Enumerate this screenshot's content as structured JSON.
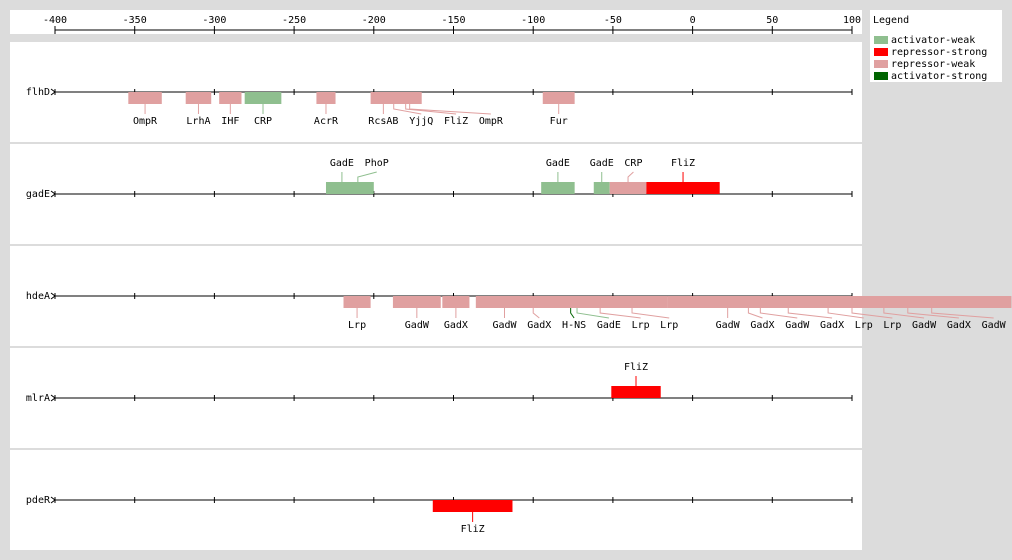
{
  "chart_data": {
    "type": "tracks",
    "xlim": [
      -400,
      100
    ],
    "xticks": [
      -400,
      -350,
      -300,
      -250,
      -200,
      -150,
      -100,
      -50,
      0,
      50,
      100
    ],
    "legend": {
      "title": "Legend"
    },
    "series": [
      {
        "name": "activator-weak",
        "color": "#8fbf8f"
      },
      {
        "name": "repressor-strong",
        "color": "#ff0000"
      },
      {
        "name": "repressor-weak",
        "color": "#e0a0a0"
      },
      {
        "name": "activator-strong",
        "color": "#006400"
      }
    ],
    "tracks": [
      {
        "name": "flhD",
        "sites": [
          {
            "label": "OmpR",
            "start": -354,
            "end": -333,
            "kind": "repressor-weak"
          },
          {
            "label": "LrhA",
            "start": -318,
            "end": -302,
            "kind": "repressor-weak"
          },
          {
            "label": "IHF",
            "start": -297,
            "end": -283,
            "kind": "repressor-weak"
          },
          {
            "label": "CRP",
            "start": -281,
            "end": -258,
            "kind": "activator-weak"
          },
          {
            "label": "AcrR",
            "start": -236,
            "end": -224,
            "kind": "repressor-weak"
          },
          {
            "label": "RcsAB",
            "start": -202,
            "end": -186,
            "kind": "repressor-weak"
          },
          {
            "label": "YjjQ",
            "start": -195,
            "end": -180,
            "kind": "repressor-weak"
          },
          {
            "label": "FliZ",
            "start": -190,
            "end": -170,
            "kind": "repressor-weak"
          },
          {
            "label": "OmpR",
            "start": -185,
            "end": -170,
            "kind": "repressor-weak"
          },
          {
            "label": "Fur",
            "start": -94,
            "end": -74,
            "kind": "repressor-weak"
          }
        ]
      },
      {
        "name": "gadE",
        "sites": [
          {
            "label": "GadE",
            "start": -230,
            "end": -210,
            "kind": "activator-weak"
          },
          {
            "label": "PhoP",
            "start": -220,
            "end": -200,
            "kind": "activator-weak"
          },
          {
            "label": "GadE",
            "start": -95,
            "end": -74,
            "kind": "activator-weak"
          },
          {
            "label": "GadE",
            "start": -62,
            "end": -52,
            "kind": "activator-weak"
          },
          {
            "label": "CRP",
            "start": -52,
            "end": -29,
            "kind": "repressor-weak"
          },
          {
            "label": "FliZ",
            "start": -29,
            "end": 17,
            "kind": "repressor-strong"
          }
        ]
      },
      {
        "name": "hdeA",
        "sites": [
          {
            "label": "Lrp",
            "start": -219,
            "end": -202,
            "kind": "repressor-weak"
          },
          {
            "label": "GadW",
            "start": -188,
            "end": -158,
            "kind": "repressor-weak"
          },
          {
            "label": "GadX",
            "start": -157,
            "end": -140,
            "kind": "repressor-weak"
          },
          {
            "label": "GadW",
            "start": -136,
            "end": -100,
            "kind": "repressor-weak"
          },
          {
            "label": "GadX",
            "start": -120,
            "end": -80,
            "kind": "repressor-weak"
          },
          {
            "label": "H-NS",
            "start": -78,
            "end": -75,
            "kind": "activator-strong"
          },
          {
            "label": "GadE",
            "start": -75,
            "end": -70,
            "kind": "activator-weak"
          },
          {
            "label": "Lrp",
            "start": -100,
            "end": -16,
            "kind": "repressor-weak"
          },
          {
            "label": "Lrp",
            "start": -60,
            "end": -16,
            "kind": "repressor-weak"
          },
          {
            "label": "GadW",
            "start": -16,
            "end": 60,
            "kind": "repressor-weak"
          },
          {
            "label": "GadX",
            "start": -10,
            "end": 80,
            "kind": "repressor-weak"
          },
          {
            "label": "GadW",
            "start": -5,
            "end": 90,
            "kind": "repressor-weak"
          },
          {
            "label": "GadX",
            "start": 0,
            "end": 120,
            "kind": "repressor-weak"
          },
          {
            "label": "Lrp",
            "start": 20,
            "end": 150,
            "kind": "repressor-weak"
          },
          {
            "label": "Lrp",
            "start": 40,
            "end": 160,
            "kind": "repressor-weak"
          },
          {
            "label": "GadW",
            "start": 60,
            "end": 180,
            "kind": "repressor-weak"
          },
          {
            "label": "GadX",
            "start": 80,
            "end": 190,
            "kind": "repressor-weak"
          },
          {
            "label": "GadW",
            "start": 100,
            "end": 200,
            "kind": "repressor-weak"
          }
        ]
      },
      {
        "name": "mlrA",
        "sites": [
          {
            "label": "FliZ",
            "start": -51,
            "end": -20,
            "kind": "repressor-strong"
          }
        ]
      },
      {
        "name": "pdeR",
        "sites": [
          {
            "label": "FliZ",
            "start": -163,
            "end": -113,
            "kind": "repressor-strong"
          }
        ]
      }
    ]
  }
}
